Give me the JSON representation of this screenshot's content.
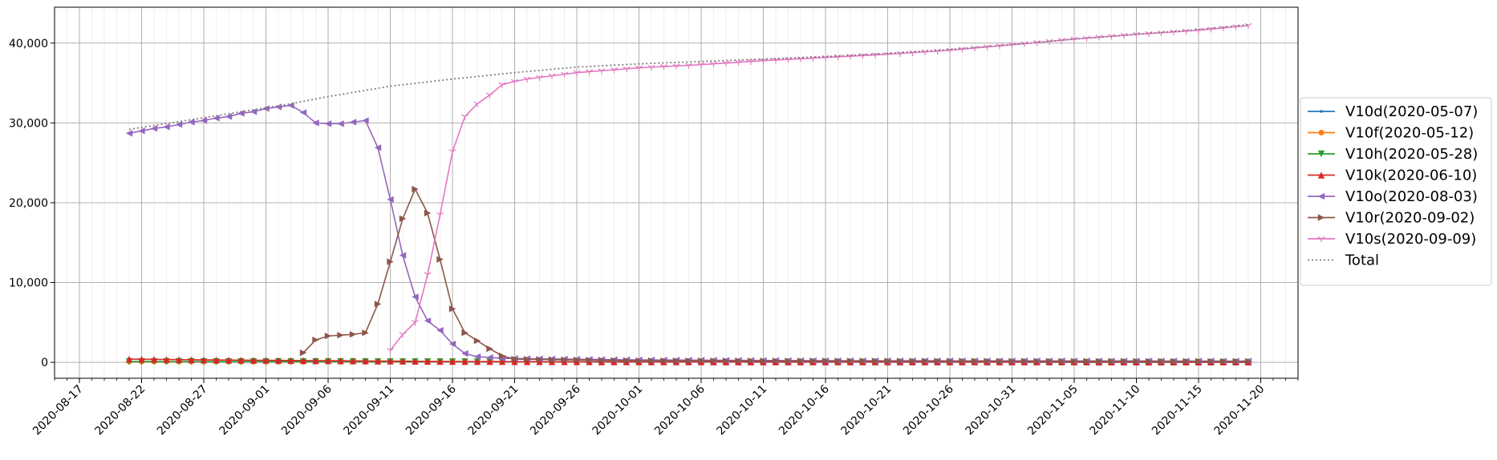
{
  "chart_data": {
    "type": "line",
    "x_start": "2020-08-21",
    "x_end": "2020-11-19",
    "xlim": [
      "2020-08-15",
      "2020-11-23"
    ],
    "ylim": [
      -2000,
      44500
    ],
    "yticks": [
      0,
      10000,
      20000,
      30000,
      40000
    ],
    "ytick_labels": [
      "0",
      "10,000",
      "20,000",
      "30,000",
      "40,000"
    ],
    "xtick_labels": [
      "2020-08-17",
      "2020-08-22",
      "2020-08-27",
      "2020-09-01",
      "2020-09-06",
      "2020-09-11",
      "2020-09-16",
      "2020-09-21",
      "2020-09-26",
      "2020-10-01",
      "2020-10-06",
      "2020-10-11",
      "2020-10-16",
      "2020-10-21",
      "2020-10-26",
      "2020-10-31",
      "2020-11-05",
      "2020-11-10",
      "2020-11-15",
      "2020-11-20"
    ],
    "grid": true,
    "legend_position": "right, outside plot",
    "series": [
      {
        "name": "V10d(2020-05-07)",
        "color": "#1f77b4",
        "marker": "point",
        "style": "solid",
        "keypoints": [
          [
            "2020-08-21",
            60
          ],
          [
            "2020-11-19",
            10
          ]
        ]
      },
      {
        "name": "V10f(2020-05-12)",
        "color": "#ff7f0e",
        "marker": "circle",
        "style": "solid",
        "keypoints": [
          [
            "2020-08-21",
            80
          ],
          [
            "2020-11-19",
            15
          ]
        ]
      },
      {
        "name": "V10h(2020-05-28)",
        "color": "#2ca02c",
        "marker": "triangle-down",
        "style": "solid",
        "keypoints": [
          [
            "2020-08-21",
            100
          ],
          [
            "2020-11-19",
            20
          ]
        ]
      },
      {
        "name": "V10k(2020-06-10)",
        "color": "#d62728",
        "marker": "triangle-up",
        "style": "solid",
        "keypoints": [
          [
            "2020-08-21",
            400
          ],
          [
            "2020-08-27",
            300
          ],
          [
            "2020-09-06",
            200
          ],
          [
            "2020-09-16",
            100
          ],
          [
            "2020-10-01",
            50
          ],
          [
            "2020-11-19",
            30
          ]
        ]
      },
      {
        "name": "V10o(2020-08-03)",
        "color": "#9467bd",
        "marker": "triangle-left",
        "style": "solid",
        "keypoints": [
          [
            "2020-08-21",
            28700
          ],
          [
            "2020-08-22",
            29000
          ],
          [
            "2020-08-23",
            29300
          ],
          [
            "2020-08-24",
            29500
          ],
          [
            "2020-08-25",
            29800
          ],
          [
            "2020-08-26",
            30100
          ],
          [
            "2020-08-27",
            30300
          ],
          [
            "2020-08-28",
            30600
          ],
          [
            "2020-08-29",
            30800
          ],
          [
            "2020-08-30",
            31200
          ],
          [
            "2020-08-31",
            31400
          ],
          [
            "2020-09-01",
            31800
          ],
          [
            "2020-09-02",
            32000
          ],
          [
            "2020-09-03",
            32200
          ],
          [
            "2020-09-04",
            31300
          ],
          [
            "2020-09-05",
            30000
          ],
          [
            "2020-09-06",
            29900
          ],
          [
            "2020-09-07",
            29900
          ],
          [
            "2020-09-08",
            30100
          ],
          [
            "2020-09-09",
            30300
          ],
          [
            "2020-09-10",
            26900
          ],
          [
            "2020-09-11",
            20400
          ],
          [
            "2020-09-12",
            13400
          ],
          [
            "2020-09-13",
            8200
          ],
          [
            "2020-09-14",
            5200
          ],
          [
            "2020-09-15",
            4000
          ],
          [
            "2020-09-16",
            2300
          ],
          [
            "2020-09-17",
            1100
          ],
          [
            "2020-09-18",
            700
          ],
          [
            "2020-09-19",
            600
          ],
          [
            "2020-09-20",
            500
          ],
          [
            "2020-09-22",
            450
          ],
          [
            "2020-10-01",
            300
          ],
          [
            "2020-10-16",
            200
          ],
          [
            "2020-11-19",
            150
          ]
        ]
      },
      {
        "name": "V10r(2020-09-02)",
        "color": "#8c564b",
        "marker": "triangle-right",
        "style": "solid",
        "keypoints": [
          [
            "2020-09-04",
            1200
          ],
          [
            "2020-09-05",
            2800
          ],
          [
            "2020-09-06",
            3300
          ],
          [
            "2020-09-07",
            3400
          ],
          [
            "2020-09-08",
            3500
          ],
          [
            "2020-09-09",
            3700
          ],
          [
            "2020-09-10",
            7300
          ],
          [
            "2020-09-11",
            12600
          ],
          [
            "2020-09-12",
            18000
          ],
          [
            "2020-09-13",
            21700
          ],
          [
            "2020-09-14",
            18700
          ],
          [
            "2020-09-15",
            12900
          ],
          [
            "2020-09-16",
            6700
          ],
          [
            "2020-09-17",
            3700
          ],
          [
            "2020-09-18",
            2700
          ],
          [
            "2020-09-19",
            1700
          ],
          [
            "2020-09-20",
            800
          ],
          [
            "2020-09-21",
            400
          ],
          [
            "2020-10-01",
            200
          ],
          [
            "2020-11-19",
            100
          ]
        ]
      },
      {
        "name": "V10s(2020-09-09)",
        "color": "#e377c2",
        "marker": "tri-down",
        "style": "solid",
        "keypoints": [
          [
            "2020-09-11",
            1500
          ],
          [
            "2020-09-12",
            3500
          ],
          [
            "2020-09-13",
            5000
          ],
          [
            "2020-09-14",
            11000
          ],
          [
            "2020-09-15",
            18500
          ],
          [
            "2020-09-16",
            26400
          ],
          [
            "2020-09-17",
            30800
          ],
          [
            "2020-09-18",
            32400
          ],
          [
            "2020-09-19",
            33500
          ],
          [
            "2020-09-20",
            34800
          ],
          [
            "2020-09-21",
            35200
          ],
          [
            "2020-09-22",
            35500
          ],
          [
            "2020-09-26",
            36300
          ],
          [
            "2020-10-01",
            36900
          ],
          [
            "2020-10-06",
            37300
          ],
          [
            "2020-10-11",
            37800
          ],
          [
            "2020-10-16",
            38200
          ],
          [
            "2020-10-21",
            38600
          ],
          [
            "2020-10-26",
            39100
          ],
          [
            "2020-10-31",
            39800
          ],
          [
            "2020-11-05",
            40500
          ],
          [
            "2020-11-10",
            41100
          ],
          [
            "2020-11-15",
            41600
          ],
          [
            "2020-11-19",
            42200
          ]
        ]
      },
      {
        "name": "Total",
        "color": "#7f7f7f",
        "marker": "none",
        "style": "dotted",
        "keypoints": [
          [
            "2020-08-21",
            29200
          ],
          [
            "2020-08-26",
            30400
          ],
          [
            "2020-09-01",
            31900
          ],
          [
            "2020-09-03",
            32400
          ],
          [
            "2020-09-06",
            33300
          ],
          [
            "2020-09-11",
            34600
          ],
          [
            "2020-09-16",
            35500
          ],
          [
            "2020-09-21",
            36300
          ],
          [
            "2020-09-26",
            37000
          ],
          [
            "2020-10-01",
            37400
          ],
          [
            "2020-10-06",
            37700
          ],
          [
            "2020-10-11",
            38000
          ],
          [
            "2020-10-16",
            38300
          ],
          [
            "2020-10-21",
            38700
          ],
          [
            "2020-10-26",
            39200
          ],
          [
            "2020-10-31",
            39800
          ],
          [
            "2020-11-05",
            40500
          ],
          [
            "2020-11-10",
            41100
          ],
          [
            "2020-11-15",
            41700
          ],
          [
            "2020-11-19",
            42300
          ]
        ]
      }
    ]
  }
}
